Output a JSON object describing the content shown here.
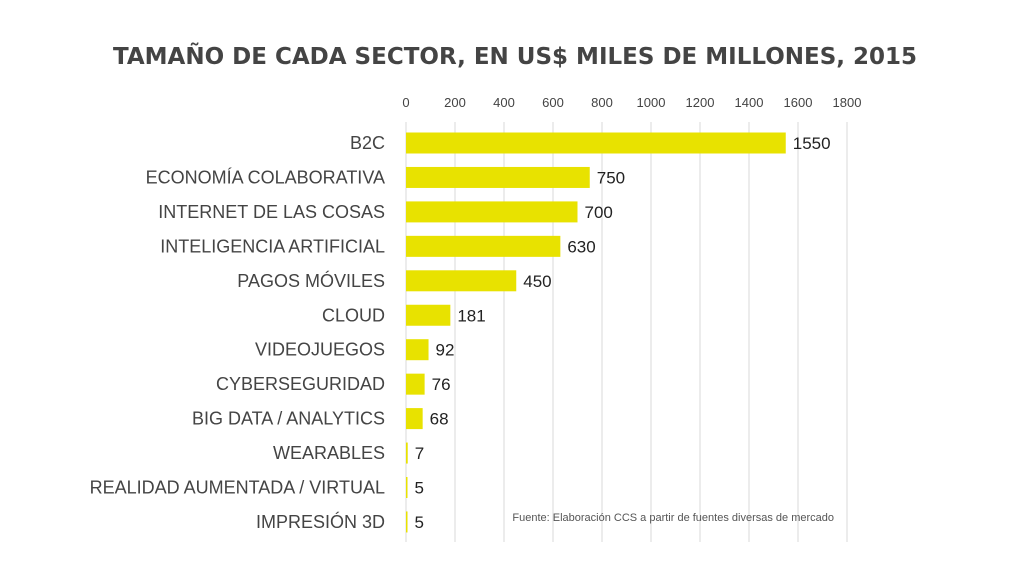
{
  "chart_data": {
    "type": "bar",
    "orientation": "horizontal",
    "title": "TAMAÑO DE CADA SECTOR, EN US$ MILES DE MILLONES, 2015",
    "xlabel": "",
    "ylabel": "",
    "xlim": [
      0,
      1800
    ],
    "x_ticks": [
      0,
      200,
      400,
      600,
      800,
      1000,
      1200,
      1400,
      1600,
      1800
    ],
    "x_axis_position": "top",
    "grid": true,
    "legend": "none",
    "bar_color": "#e8e200",
    "categories": [
      "B2C",
      "ECONOMÍA COLABORATIVA",
      "INTERNET DE LAS COSAS",
      "INTELIGENCIA ARTIFICIAL",
      "PAGOS MÓVILES",
      "CLOUD",
      "VIDEOJUEGOS",
      "CYBERSEGURIDAD",
      "BIG DATA / ANALYTICS",
      "WEARABLES",
      "REALIDAD AUMENTADA / VIRTUAL",
      "IMPRESIÓN 3D"
    ],
    "values": [
      1550,
      750,
      700,
      630,
      450,
      181,
      92,
      76,
      68,
      7,
      5,
      5
    ],
    "source": "Fuente: Elaboración CCS a partir de fuentes diversas de mercado"
  }
}
